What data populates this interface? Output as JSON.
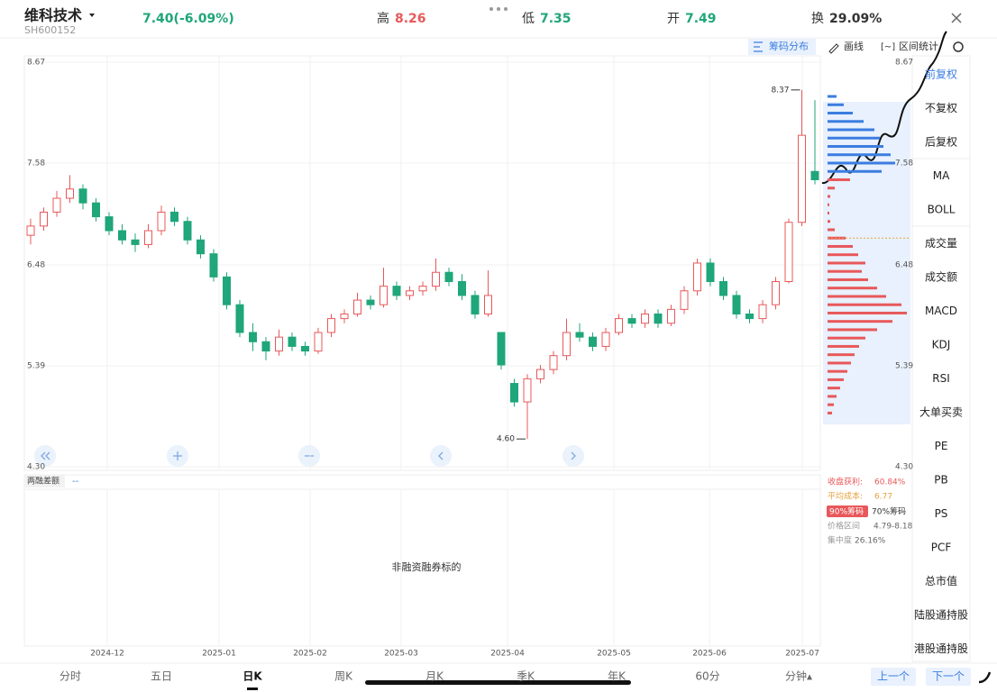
{
  "header": {
    "name": "维科技术",
    "code": "SH600152",
    "price_change": "7.40(-6.09%)",
    "high_label": "高",
    "high": "8.26",
    "low_label": "低",
    "low": "7.35",
    "open_label": "开",
    "open": "7.49",
    "turnover_label": "换",
    "turnover": "29.09%"
  },
  "toolbar": {
    "chips": "筹码分布",
    "draw": "画线",
    "range": "区间统计"
  },
  "menu": [
    "前复权",
    "不复权",
    "后复权",
    "MA",
    "BOLL",
    "成交量",
    "成交额",
    "MACD",
    "KDJ",
    "RSI",
    "大单买卖",
    "PE",
    "PB",
    "PS",
    "PCF",
    "总市值",
    "陆股通持股",
    "港股通持股"
  ],
  "chart_data": {
    "type": "candlestick",
    "up_color": "#e8585a",
    "down_color": "#1fa67a",
    "candles": [
      [
        6.8,
        6.98,
        6.7,
        6.9
      ],
      [
        6.9,
        7.1,
        6.85,
        7.05
      ],
      [
        7.05,
        7.28,
        7.0,
        7.2
      ],
      [
        7.2,
        7.45,
        7.15,
        7.3
      ],
      [
        7.3,
        7.35,
        7.08,
        7.15
      ],
      [
        7.15,
        7.2,
        6.95,
        7.0
      ],
      [
        7.0,
        7.05,
        6.8,
        6.85
      ],
      [
        6.85,
        6.92,
        6.7,
        6.75
      ],
      [
        6.75,
        6.82,
        6.62,
        6.7
      ],
      [
        6.7,
        6.92,
        6.66,
        6.85
      ],
      [
        6.85,
        7.12,
        6.8,
        7.05
      ],
      [
        7.05,
        7.1,
        6.9,
        6.95
      ],
      [
        6.95,
        7.0,
        6.7,
        6.75
      ],
      [
        6.75,
        6.8,
        6.55,
        6.6
      ],
      [
        6.6,
        6.65,
        6.3,
        6.35
      ],
      [
        6.35,
        6.4,
        6.0,
        6.05
      ],
      [
        6.05,
        6.1,
        5.7,
        5.75
      ],
      [
        5.75,
        5.85,
        5.55,
        5.65
      ],
      [
        5.65,
        5.7,
        5.45,
        5.55
      ],
      [
        5.55,
        5.78,
        5.5,
        5.7
      ],
      [
        5.7,
        5.75,
        5.55,
        5.6
      ],
      [
        5.6,
        5.65,
        5.5,
        5.55
      ],
      [
        5.55,
        5.8,
        5.52,
        5.75
      ],
      [
        5.75,
        5.95,
        5.7,
        5.9
      ],
      [
        5.9,
        6.0,
        5.85,
        5.95
      ],
      [
        5.95,
        6.18,
        5.92,
        6.1
      ],
      [
        6.1,
        6.15,
        6.0,
        6.05
      ],
      [
        6.05,
        6.45,
        6.02,
        6.25
      ],
      [
        6.25,
        6.3,
        6.1,
        6.15
      ],
      [
        6.15,
        6.25,
        6.1,
        6.2
      ],
      [
        6.2,
        6.3,
        6.15,
        6.25
      ],
      [
        6.25,
        6.55,
        6.2,
        6.4
      ],
      [
        6.4,
        6.45,
        6.25,
        6.3
      ],
      [
        6.3,
        6.38,
        6.1,
        6.15
      ],
      [
        6.15,
        6.2,
        5.9,
        5.95
      ],
      [
        5.95,
        6.42,
        5.92,
        6.15
      ],
      [
        5.75,
        5.75,
        5.35,
        5.4
      ],
      [
        5.2,
        5.25,
        4.95,
        5.0
      ],
      [
        5.0,
        5.3,
        4.6,
        5.25
      ],
      [
        5.25,
        5.4,
        5.2,
        5.35
      ],
      [
        5.35,
        5.55,
        5.3,
        5.5
      ],
      [
        5.5,
        5.9,
        5.45,
        5.75
      ],
      [
        5.75,
        5.85,
        5.65,
        5.7
      ],
      [
        5.7,
        5.75,
        5.55,
        5.6
      ],
      [
        5.6,
        5.8,
        5.55,
        5.75
      ],
      [
        5.75,
        5.95,
        5.72,
        5.9
      ],
      [
        5.9,
        5.95,
        5.8,
        5.85
      ],
      [
        5.85,
        6.0,
        5.8,
        5.95
      ],
      [
        5.95,
        6.0,
        5.8,
        5.85
      ],
      [
        5.85,
        6.05,
        5.82,
        6.0
      ],
      [
        6.0,
        6.25,
        5.95,
        6.2
      ],
      [
        6.2,
        6.55,
        6.15,
        6.5
      ],
      [
        6.5,
        6.55,
        6.25,
        6.3
      ],
      [
        6.3,
        6.35,
        6.1,
        6.15
      ],
      [
        6.15,
        6.2,
        5.9,
        5.95
      ],
      [
        5.95,
        6.0,
        5.85,
        5.9
      ],
      [
        5.9,
        6.1,
        5.85,
        6.05
      ],
      [
        6.05,
        6.35,
        6.0,
        6.3
      ],
      [
        6.3,
        6.98,
        6.28,
        6.94
      ],
      [
        6.94,
        8.37,
        6.9,
        7.88
      ],
      [
        7.49,
        8.26,
        7.35,
        7.4
      ]
    ],
    "ylim": [
      4.3,
      8.67
    ],
    "yticks": [
      8.67,
      7.58,
      6.48,
      5.39,
      {
        "value": 4.3,
        "label": "4.30"
      }
    ],
    "x_labels": [
      "2024-12",
      "2025-01",
      "2025-02",
      "2025-03",
      "2025-04",
      "2025-05",
      "2025-06",
      "2025-07"
    ],
    "max_label": "8.37",
    "min_label": "4.60"
  },
  "chips": {
    "above_color": "#3b7de0",
    "below_color": "#e8585a",
    "prices": [
      8.3,
      8.21,
      8.12,
      8.03,
      7.94,
      7.85,
      7.76,
      7.67,
      7.58,
      7.49,
      7.4,
      7.31,
      7.22,
      7.13,
      7.04,
      6.95,
      6.86,
      6.77,
      6.68,
      6.59,
      6.5,
      6.41,
      6.32,
      6.23,
      6.14,
      6.05,
      5.96,
      5.87,
      5.78,
      5.69,
      5.6,
      5.51,
      5.42,
      5.33,
      5.24,
      5.15,
      5.06,
      4.97,
      4.88
    ],
    "widths": [
      10,
      18,
      28,
      40,
      52,
      58,
      62,
      70,
      75,
      60,
      25,
      8,
      3,
      2,
      2,
      3,
      8,
      20,
      28,
      34,
      42,
      38,
      45,
      55,
      65,
      82,
      88,
      72,
      55,
      42,
      35,
      30,
      26,
      22,
      18,
      14,
      10,
      7,
      5
    ]
  },
  "chip_stats": {
    "profit_label": "收盘获利:",
    "profit": "60.84%",
    "avg_label": "平均成本:",
    "avg_cost": 6.77,
    "tag90": "90%筹码",
    "tag70": "70%筹码",
    "range_label": "价格区间",
    "range": "4.79-8.18",
    "conc_label": "集中度",
    "conc": "26.16%"
  },
  "lower_panel": {
    "tag": "两融差额",
    "value": "--",
    "message": "非融资融券标的"
  },
  "tabs": [
    "分时",
    "五日",
    "日K",
    "周K",
    "月K",
    "季K",
    "年K",
    "60分",
    "分钟▴"
  ],
  "nav": {
    "prev": "上一个",
    "next": "下一个"
  }
}
